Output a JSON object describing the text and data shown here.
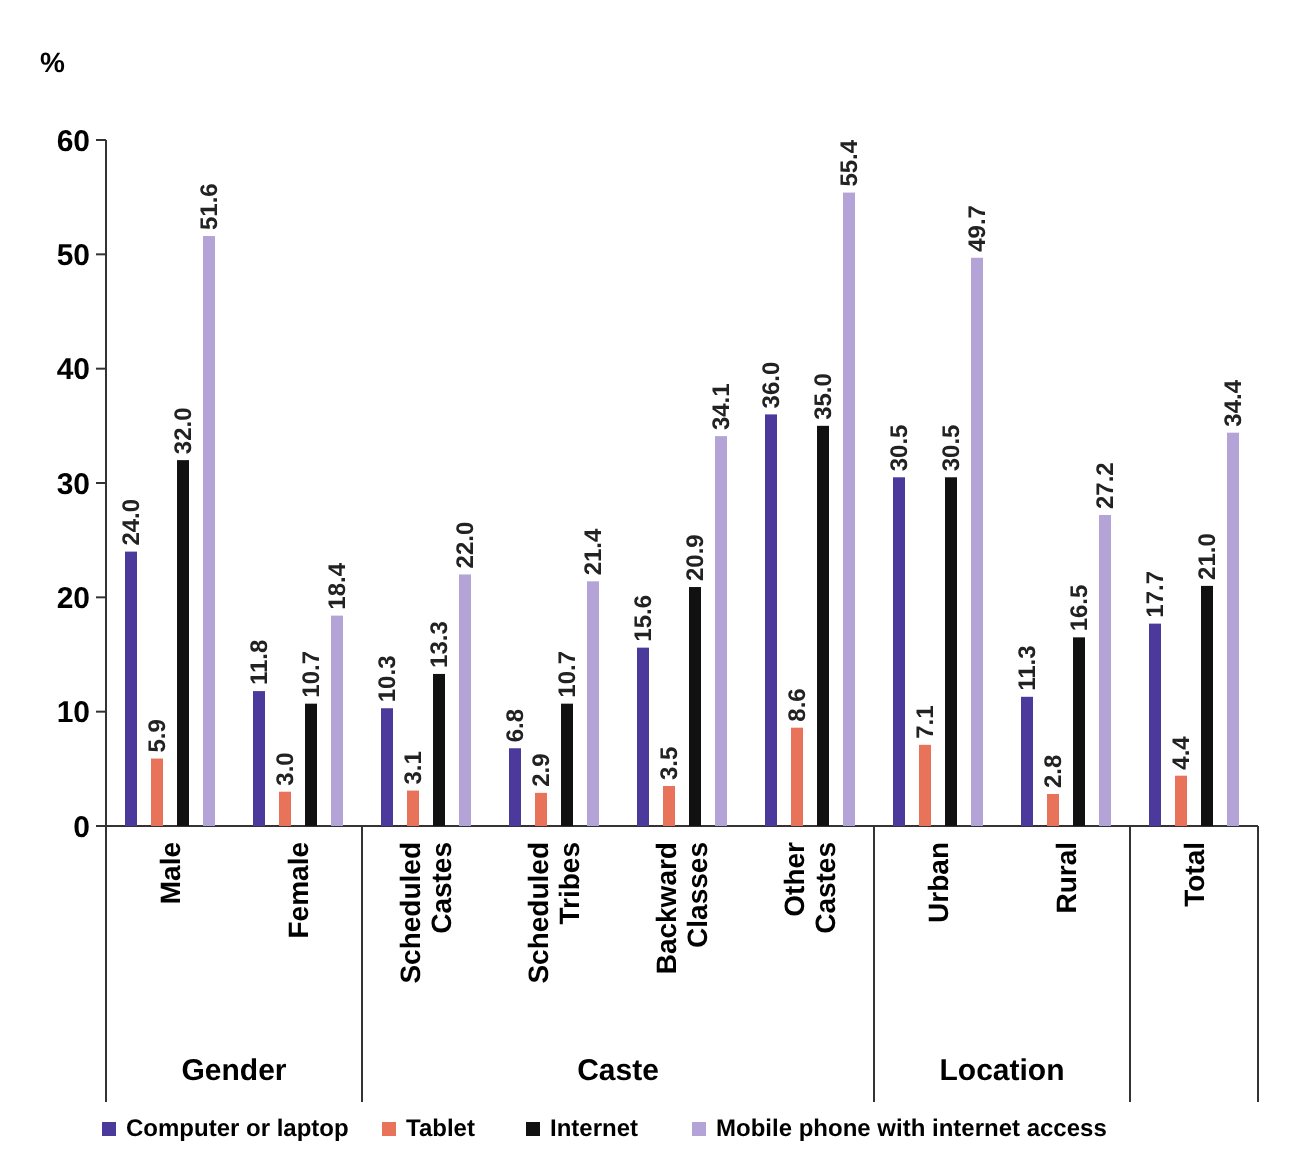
{
  "chart_data": {
    "type": "bar",
    "ylabel": "%",
    "categories": [
      "Male",
      "Female",
      "Scheduled Castes",
      "Scheduled Tribes",
      "Backward Classes",
      "Other Castes",
      "Urban",
      "Rural",
      "Total"
    ],
    "series": [
      {
        "name": "Computer or laptop",
        "color": "#4b3a9c",
        "values": [
          24.0,
          11.8,
          10.3,
          6.8,
          15.6,
          36.0,
          30.5,
          11.3,
          17.7
        ],
        "value_labels": [
          "24.0",
          "11.8",
          "10.3",
          "6.8",
          "15.6",
          "36.0",
          "30.5",
          "11.3",
          "17.7"
        ]
      },
      {
        "name": "Tablet",
        "color": "#e8735a",
        "values": [
          5.9,
          3.0,
          3.1,
          2.9,
          3.5,
          8.6,
          7.1,
          2.8,
          4.4
        ],
        "value_labels": [
          "5.9",
          "3.0",
          "3.1",
          "2.9",
          "3.5",
          "8.6",
          "7.1",
          "2.8",
          "4.4"
        ]
      },
      {
        "name": "Internet",
        "color": "#111111",
        "values": [
          32.0,
          10.7,
          13.3,
          10.7,
          20.9,
          35.0,
          30.5,
          16.5,
          21.0
        ],
        "value_labels": [
          "32.0",
          "10.7",
          "13.3",
          "10.7",
          "20.9",
          "35.0",
          "30.5",
          "16.5",
          "21.0"
        ]
      },
      {
        "name": "Mobile phone with internet access",
        "color": "#b3a3d6",
        "values": [
          51.6,
          18.4,
          22.0,
          21.4,
          34.1,
          55.4,
          49.7,
          27.2,
          34.4
        ],
        "value_labels": [
          "51.6",
          "18.4",
          "22.0",
          "21.4",
          "34.1",
          "55.4",
          "49.7",
          "27.2",
          "34.4"
        ]
      }
    ],
    "annotations": [
      "Gender",
      "Caste",
      "Location"
    ],
    "ylim": [
      0,
      60
    ],
    "yticks": [
      0,
      10,
      20,
      30,
      40,
      50,
      60
    ],
    "grid": false,
    "legend": "bottom"
  }
}
